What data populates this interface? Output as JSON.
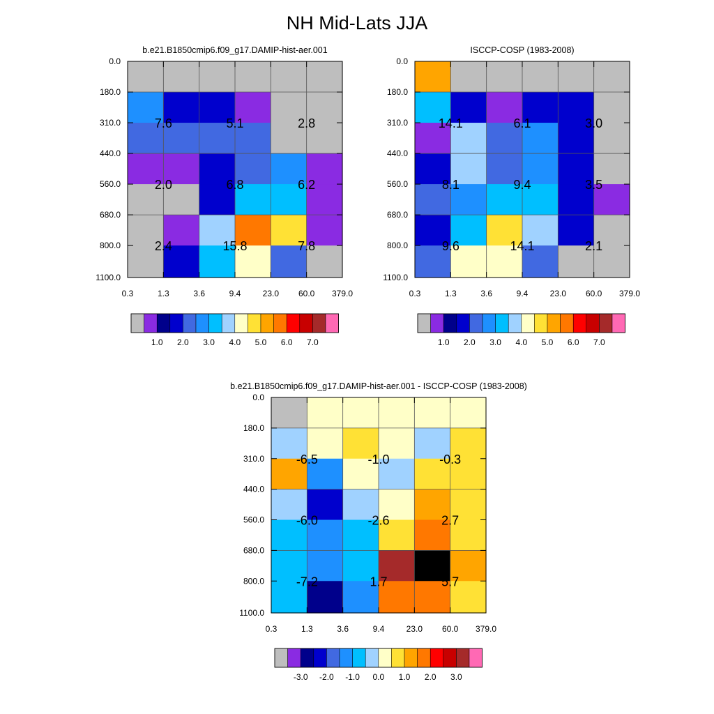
{
  "main_title": "NH Mid-Lats JJA",
  "chart_data": [
    {
      "type": "heatmap",
      "id": "model",
      "title": "b.e21.B1850cmip6.f09_g17.DAMIP-hist-aer.001",
      "x_tick_labels": [
        "0.3",
        "1.3",
        "3.6",
        "9.4",
        "23.0",
        "60.0",
        "379.0"
      ],
      "y_tick_labels": [
        "0.0",
        "180.0",
        "310.0",
        "440.0",
        "560.0",
        "680.0",
        "800.0",
        "1100.0"
      ],
      "cell_color_index": [
        [
          0,
          0,
          0,
          0,
          0,
          0
        ],
        [
          5,
          3,
          3,
          1,
          0,
          0
        ],
        [
          4,
          4,
          4,
          4,
          0,
          0
        ],
        [
          1,
          1,
          3,
          4,
          5,
          1
        ],
        [
          0,
          0,
          3,
          6,
          6,
          1
        ],
        [
          0,
          1,
          7,
          11,
          9,
          1
        ],
        [
          0,
          3,
          6,
          8,
          4,
          0
        ]
      ],
      "annotations": [
        {
          "text": "7.6",
          "col": 1,
          "row": 1
        },
        {
          "text": "5.1",
          "col": 3,
          "row": 1
        },
        {
          "text": "2.8",
          "col": 5,
          "row": 1
        },
        {
          "text": "2.0",
          "col": 1,
          "row": 3
        },
        {
          "text": "6.8",
          "col": 3,
          "row": 3
        },
        {
          "text": "6.2",
          "col": 5,
          "row": 3
        },
        {
          "text": "2.4",
          "col": 1,
          "row": 5
        },
        {
          "text": "15.8",
          "col": 3,
          "row": 5
        },
        {
          "text": "7.8",
          "col": 5,
          "row": 5
        }
      ],
      "colorbar_labels": [
        "1.0",
        "2.0",
        "3.0",
        "4.0",
        "5.0",
        "6.0",
        "7.0"
      ]
    },
    {
      "type": "heatmap",
      "id": "obs",
      "title": "ISCCP-COSP (1983-2008)",
      "x_tick_labels": [
        "0.3",
        "1.3",
        "3.6",
        "9.4",
        "23.0",
        "60.0",
        "379.0"
      ],
      "y_tick_labels": [
        "0.0",
        "180.0",
        "310.0",
        "440.0",
        "560.0",
        "680.0",
        "800.0",
        "1100.0"
      ],
      "cell_color_index": [
        [
          10,
          0,
          0,
          0,
          0,
          0
        ],
        [
          6,
          3,
          1,
          3,
          3,
          0
        ],
        [
          1,
          7,
          4,
          5,
          3,
          0
        ],
        [
          3,
          7,
          4,
          5,
          3,
          0
        ],
        [
          4,
          5,
          6,
          6,
          3,
          1
        ],
        [
          3,
          6,
          9,
          7,
          3,
          0
        ],
        [
          4,
          8,
          8,
          4,
          0,
          0
        ]
      ],
      "annotations": [
        {
          "text": "14.1",
          "col": 1,
          "row": 1
        },
        {
          "text": "6.1",
          "col": 3,
          "row": 1
        },
        {
          "text": "3.0",
          "col": 5,
          "row": 1
        },
        {
          "text": "8.1",
          "col": 1,
          "row": 3
        },
        {
          "text": "9.4",
          "col": 3,
          "row": 3
        },
        {
          "text": "3.5",
          "col": 5,
          "row": 3
        },
        {
          "text": "9.6",
          "col": 1,
          "row": 5
        },
        {
          "text": "14.1",
          "col": 3,
          "row": 5
        },
        {
          "text": "2.1",
          "col": 5,
          "row": 5
        }
      ],
      "colorbar_labels": [
        "1.0",
        "2.0",
        "3.0",
        "4.0",
        "5.0",
        "6.0",
        "7.0"
      ]
    },
    {
      "type": "heatmap",
      "id": "diff",
      "title": "b.e21.B1850cmip6.f09_g17.DAMIP-hist-aer.001 - ISCCP-COSP (1983-2008)",
      "x_tick_labels": [
        "0.3",
        "1.3",
        "3.6",
        "9.4",
        "23.0",
        "60.0",
        "379.0"
      ],
      "y_tick_labels": [
        "0.0",
        "180.0",
        "310.0",
        "440.0",
        "560.0",
        "680.0",
        "800.0",
        "1100.0"
      ],
      "cell_color_index": [
        [
          0,
          8,
          8,
          8,
          8,
          8
        ],
        [
          7,
          8,
          9,
          8,
          7,
          9
        ],
        [
          10,
          5,
          8,
          7,
          9,
          9
        ],
        [
          7,
          3,
          7,
          8,
          10,
          9
        ],
        [
          6,
          5,
          6,
          9,
          11,
          9
        ],
        [
          6,
          5,
          6,
          14,
          16,
          10
        ],
        [
          6,
          2,
          5,
          11,
          11,
          9
        ]
      ],
      "annotations": [
        {
          "text": "-6.5",
          "col": 1,
          "row": 1
        },
        {
          "text": "-1.0",
          "col": 3,
          "row": 1
        },
        {
          "text": "-0.3",
          "col": 5,
          "row": 1
        },
        {
          "text": "-6.0",
          "col": 1,
          "row": 3
        },
        {
          "text": "-2.6",
          "col": 3,
          "row": 3
        },
        {
          "text": "2.7",
          "col": 5,
          "row": 3
        },
        {
          "text": "-7.2",
          "col": 1,
          "row": 5
        },
        {
          "text": "1.7",
          "col": 3,
          "row": 5
        },
        {
          "text": "5.7",
          "col": 5,
          "row": 5
        }
      ],
      "colorbar_labels": [
        "-3.0",
        "-2.0",
        "-1.0",
        "0.0",
        "1.0",
        "2.0",
        "3.0"
      ]
    }
  ],
  "palette": [
    "#bebebe",
    "#8a2be2",
    "#00008b",
    "#0000cd",
    "#4169e1",
    "#1e90ff",
    "#00bfff",
    "#a0d2ff",
    "#ffffc8",
    "#ffe135",
    "#ffa500",
    "#ff7800",
    "#ff0000",
    "#c80000",
    "#a52a2a",
    "#ff69b4"
  ],
  "colors": {
    "grey": "#bebebe",
    "purple": "#8a2be2",
    "navy": "#00008b",
    "medium-blue": "#0000cd",
    "royal-blue": "#4169e1",
    "dodger-blue": "#1e90ff",
    "sky-blue": "#00bfff",
    "light-blue": "#a0d2ff",
    "light-yellow": "#ffffc8",
    "yellow": "#ffe135",
    "orange": "#ffa500",
    "dark-orange": "#ff7800",
    "red": "#ff0000",
    "dark-red": "#c80000",
    "brown": "#a52a2a",
    "pink": "#ff69b4"
  }
}
